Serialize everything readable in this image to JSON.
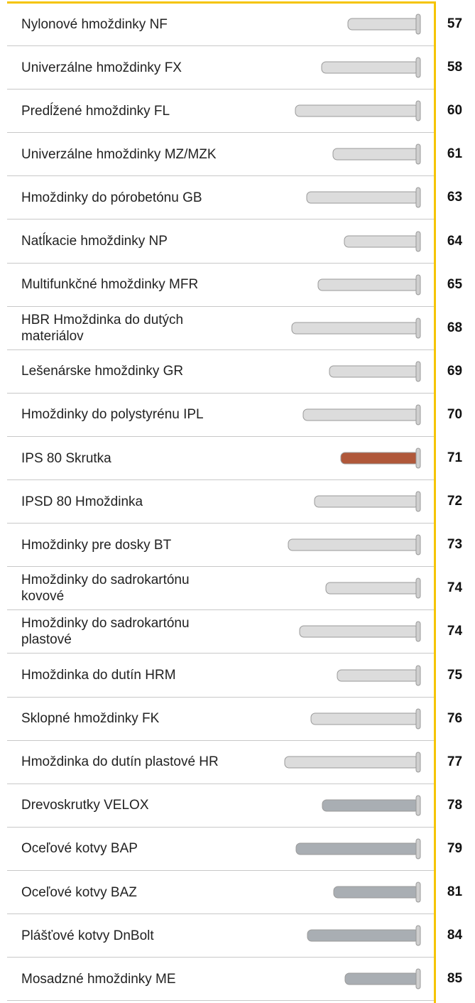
{
  "items": [
    {
      "label": "Nylonové hmoždinky NF",
      "page": 57
    },
    {
      "label": "Univerzálne hmoždinky FX",
      "page": 58
    },
    {
      "label": "Predĺžené hmoždinky FL",
      "page": 60
    },
    {
      "label": "Univerzálne hmoždinky MZ/MZK",
      "page": 61
    },
    {
      "label": "Hmoždinky do pórobetónu GB",
      "page": 63
    },
    {
      "label": "Natĺkacie hmoždinky NP",
      "page": 64
    },
    {
      "label": "Multifunkčné hmoždinky MFR",
      "page": 65
    },
    {
      "label": "HBR Hmoždinka do dutých materiálov",
      "page": 68
    },
    {
      "label": "Lešenárske hmoždinky GR",
      "page": 69
    },
    {
      "label": "Hmoždinky do polystyrénu IPL",
      "page": 70
    },
    {
      "label": "IPS 80 Skrutka",
      "page": 71
    },
    {
      "label": "IPSD 80 Hmoždinka",
      "page": 72
    },
    {
      "label": "Hmoždinky pre dosky BT",
      "page": 73
    },
    {
      "label": "Hmoždinky do sadrokartónu kovové",
      "page": 74
    },
    {
      "label": "Hmoždinky do sadrokartónu plastové",
      "page": 74
    },
    {
      "label": "Hmoždinka do dutín HRM",
      "page": 75
    },
    {
      "label": "Sklopné hmoždinky FK",
      "page": 76
    },
    {
      "label": "Hmoždinka do dutín plastové HR",
      "page": 77
    },
    {
      "label": "Drevoskrutky VELOX",
      "page": 78
    },
    {
      "label": "Oceľové kotvy BAP",
      "page": 79
    },
    {
      "label": "Oceľové kotvy BAZ",
      "page": 81
    },
    {
      "label": "Plášťové kotvy DnBolt",
      "page": 84
    },
    {
      "label": "Mosadzné hmoždinky ME",
      "page": 85
    }
  ]
}
